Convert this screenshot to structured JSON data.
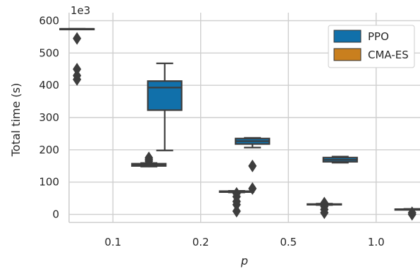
{
  "chart_data": {
    "type": "box",
    "x_label": "p",
    "y_label": "Total time (s)",
    "y_multiplier_label": "1e3",
    "y_ticks": [
      0,
      100,
      200,
      300,
      400,
      500,
      600
    ],
    "ylim": [
      -25,
      625
    ],
    "categories": [
      "0.1",
      "0.2",
      "0.5",
      "1.0"
    ],
    "grid": true,
    "legend_position": "top-right",
    "series": [
      {
        "name": "PPO",
        "color": "#1170aa",
        "boxes": [
          {
            "category": "0.1",
            "whisker_low": 575,
            "q1": 575,
            "median": 575,
            "q3": 575,
            "whisker_high": 575,
            "outliers": [
              545,
              450,
              430,
              418
            ]
          },
          {
            "category": "0.2",
            "whisker_low": 198,
            "q1": 323,
            "median": 393,
            "q3": 413,
            "whisker_high": 468,
            "outliers": []
          },
          {
            "category": "0.5",
            "whisker_low": 207,
            "q1": 218,
            "median": 227,
            "q3": 235,
            "whisker_high": 237,
            "outliers": [
              150,
              80
            ]
          },
          {
            "category": "1.0",
            "whisker_low": 160,
            "q1": 163,
            "median": 169,
            "q3": 176,
            "whisker_high": 179,
            "outliers": []
          }
        ]
      },
      {
        "name": "CMA-ES",
        "color": "#c97f1e",
        "boxes": [
          {
            "category": "0.1",
            "whisker_low": 148,
            "q1": 150,
            "median": 154,
            "q3": 157,
            "whisker_high": 159,
            "outliers": [
              175,
              170,
              165
            ]
          },
          {
            "category": "0.2",
            "whisker_low": 68,
            "q1": 69,
            "median": 71,
            "q3": 72,
            "whisker_high": 73,
            "outliers": [
              65,
              55,
              40,
              30,
              10
            ]
          },
          {
            "category": "0.5",
            "whisker_low": 29,
            "q1": 30,
            "median": 31,
            "q3": 32,
            "whisker_high": 33,
            "outliers": [
              35,
              25,
              15,
              5
            ]
          },
          {
            "category": "1.0",
            "whisker_low": 15,
            "q1": 15,
            "median": 16,
            "q3": 16,
            "whisker_high": 17,
            "outliers": [
              5,
              0
            ]
          }
        ]
      }
    ]
  }
}
